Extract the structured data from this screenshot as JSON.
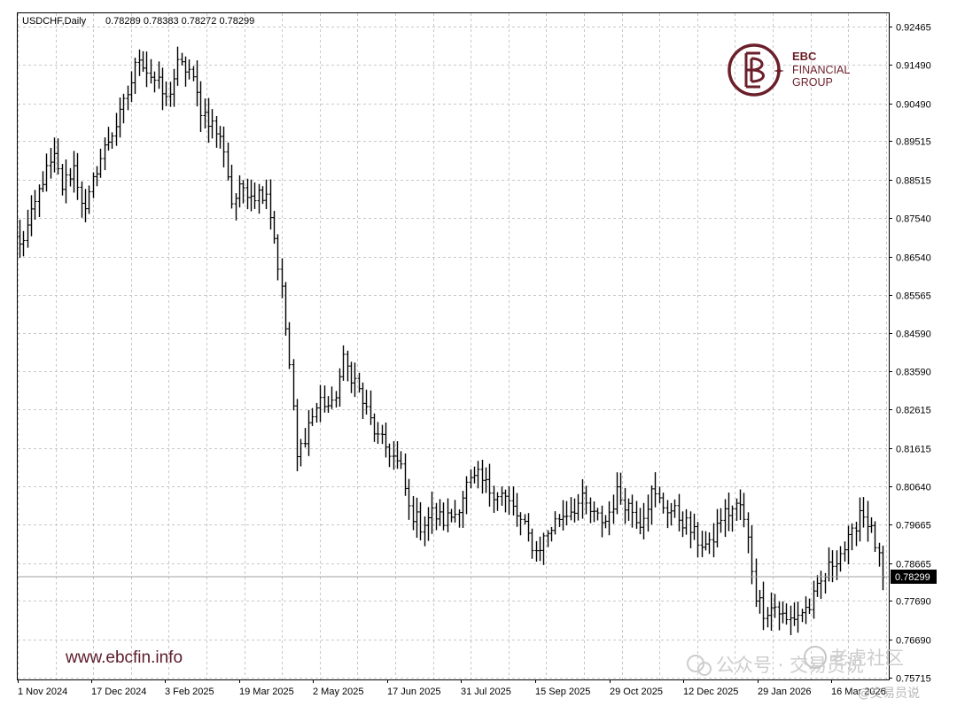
{
  "header": {
    "symbol": "USDCHF,Daily",
    "ohlc": "0.78289 0.78383 0.78272 0.78299"
  },
  "logo": {
    "line1": "EBC",
    "line2": "FINANCIAL",
    "line3": "GROUP"
  },
  "website": "www.ebcfin.info",
  "watermarks": {
    "a": "公众号 · 交易员说",
    "b": "老虎社区",
    "c": "@交易员说"
  },
  "current_price_label": "0.78299",
  "colors": {
    "bars": "#000000",
    "grid": "#c8c8c8",
    "logo": "#6b1f2a",
    "price_line": "#a0a0a0"
  },
  "chart_data": {
    "type": "ohlc-bar",
    "timeframe": "Daily",
    "symbol": "USDCHF",
    "ylim": [
      0.7562,
      0.9295
    ],
    "y_ticks": [
      "0.92465",
      "0.91490",
      "0.90490",
      "0.89515",
      "0.88515",
      "0.87540",
      "0.86540",
      "0.85565",
      "0.84590",
      "0.83590",
      "0.82615",
      "0.81615",
      "0.80640",
      "0.79665",
      "0.78665",
      "0.77690",
      "0.76690",
      "0.75715"
    ],
    "x_ticks": [
      "1 Nov 2024",
      "17 Dec 2024",
      "3 Feb 2025",
      "19 Mar 2025",
      "2 May 2025",
      "17 Jun 2025",
      "31 Jul 2025",
      "15 Sep 2025",
      "29 Oct 2025",
      "12 Dec 2025",
      "29 Jan 2026",
      "16 Mar 2026"
    ],
    "grid": true,
    "last_close": 0.78299,
    "close_path": [
      [
        0,
        0.868
      ],
      [
        3,
        0.8755
      ],
      [
        6,
        0.8855
      ],
      [
        9,
        0.8905
      ],
      [
        11,
        0.8835
      ],
      [
        14,
        0.8885
      ],
      [
        17,
        0.8765
      ],
      [
        20,
        0.8885
      ],
      [
        23,
        0.8955
      ],
      [
        26,
        0.9015
      ],
      [
        29,
        0.9105
      ],
      [
        31,
        0.9175
      ],
      [
        33,
        0.9135
      ],
      [
        36,
        0.9095
      ],
      [
        38,
        0.9055
      ],
      [
        41,
        0.9145
      ],
      [
        44,
        0.9135
      ],
      [
        47,
        0.9035
      ],
      [
        50,
        0.8995
      ],
      [
        53,
        0.8935
      ],
      [
        55,
        0.8795
      ],
      [
        58,
        0.8835
      ],
      [
        61,
        0.8815
      ],
      [
        64,
        0.8825
      ],
      [
        66,
        0.8705
      ],
      [
        68,
        0.8565
      ],
      [
        70,
        0.8375
      ],
      [
        72,
        0.8135
      ],
      [
        75,
        0.8225
      ],
      [
        78,
        0.8285
      ],
      [
        81,
        0.8265
      ],
      [
        84,
        0.8385
      ],
      [
        87,
        0.8335
      ],
      [
        90,
        0.8255
      ],
      [
        93,
        0.8185
      ],
      [
        96,
        0.8155
      ],
      [
        99,
        0.8105
      ],
      [
        101,
        0.8005
      ],
      [
        104,
        0.7965
      ],
      [
        107,
        0.7995
      ],
      [
        110,
        0.7975
      ],
      [
        113,
        0.7995
      ],
      [
        116,
        0.8065
      ],
      [
        119,
        0.8085
      ],
      [
        122,
        0.8055
      ],
      [
        125,
        0.8045
      ],
      [
        128,
        0.8005
      ],
      [
        131,
        0.7955
      ],
      [
        134,
        0.7895
      ],
      [
        137,
        0.7945
      ],
      [
        140,
        0.7985
      ],
      [
        143,
        0.8005
      ],
      [
        146,
        0.8025
      ],
      [
        149,
        0.7985
      ],
      [
        152,
        0.7975
      ],
      [
        155,
        0.8045
      ],
      [
        158,
        0.8015
      ],
      [
        161,
        0.7975
      ],
      [
        164,
        0.8045
      ],
      [
        167,
        0.8015
      ],
      [
        170,
        0.7995
      ],
      [
        173,
        0.7965
      ],
      [
        176,
        0.7925
      ],
      [
        179,
        0.7905
      ],
      [
        182,
        0.7985
      ],
      [
        185,
        0.8005
      ],
      [
        187,
        0.8015
      ],
      [
        189,
        0.7925
      ],
      [
        191,
        0.7785
      ],
      [
        193,
        0.7745
      ],
      [
        196,
        0.7755
      ],
      [
        199,
        0.7715
      ],
      [
        202,
        0.7735
      ],
      [
        205,
        0.7755
      ],
      [
        207,
        0.7795
      ],
      [
        209,
        0.7835
      ],
      [
        212,
        0.7885
      ],
      [
        214,
        0.7905
      ],
      [
        216,
        0.7935
      ],
      [
        218,
        0.8005
      ],
      [
        220,
        0.7975
      ],
      [
        222,
        0.7915
      ],
      [
        224,
        0.78299
      ]
    ]
  }
}
